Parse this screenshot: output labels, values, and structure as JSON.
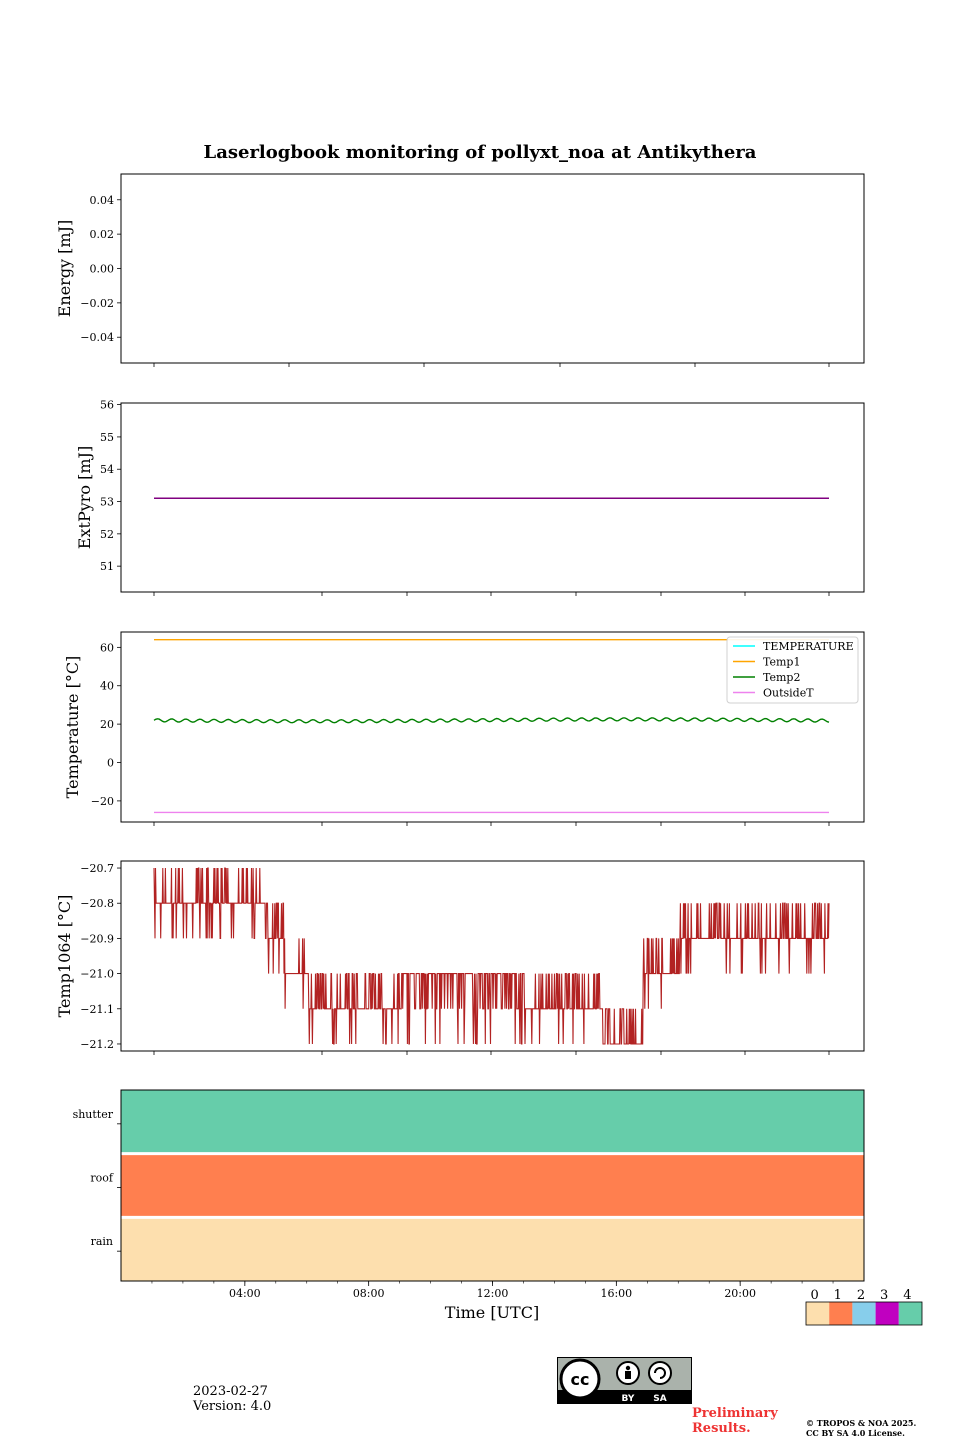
{
  "title": "Laserlogbook monitoring of pollyxt_noa at Antikythera",
  "footer": {
    "date": "2023-02-27",
    "version": "Version: 4.0",
    "preliminary_line1": "Preliminary",
    "preliminary_line2": "Results.",
    "copyright_line1": "© TROPOS & NOA 2025.",
    "copyright_line2": "CC BY SA 4.0 License.",
    "badge_by": "BY",
    "badge_sa": "SA"
  },
  "colors": {
    "energy": "#800080",
    "extpyro": "#800080",
    "temperature": "#00ffff",
    "temp1": "#ffa500",
    "temp2": "#008000",
    "outsidet": "#ee82ee",
    "temp1064": "#b22222",
    "status_0": "#fddfae",
    "status_1": "#ff7f4f",
    "status_2": "#87ceeb",
    "status_3": "#c000c0",
    "status_4": "#66cdaa",
    "preliminary": "#ee3333"
  },
  "chart_data": [
    {
      "type": "line",
      "ylabel": "Energy [mJ]",
      "ylim": [
        -0.055,
        0.055
      ],
      "yticks": [
        0.04,
        0.02,
        0.0,
        -0.02,
        -0.04
      ],
      "ytick_labels": [
        "0.04",
        "0.02",
        "0.00",
        "−0.02",
        "−0.04"
      ],
      "series": []
    },
    {
      "type": "line",
      "ylabel": "ExtPyro [mJ]",
      "ylim": [
        50.2,
        56.05
      ],
      "yticks": [
        51,
        52,
        53,
        54,
        55,
        56
      ],
      "ytick_labels": [
        "51",
        "52",
        "53",
        "54",
        "55",
        "56"
      ],
      "x_hours": [
        1.0,
        22.8
      ],
      "series": [
        {
          "values": [
            53.1,
            53.1
          ]
        }
      ]
    },
    {
      "type": "line",
      "ylabel": "Temperature [°C]",
      "ylim": [
        -31,
        68
      ],
      "yticks": [
        60,
        40,
        20,
        0,
        -20
      ],
      "ytick_labels": [
        "60",
        "40",
        "20",
        "0",
        "−20"
      ],
      "x_hours": [
        1.0,
        22.8
      ],
      "legend_position": "upper right",
      "series": [
        {
          "name": "TEMPERATURE",
          "values": [
            null,
            null
          ]
        },
        {
          "name": "Temp1",
          "values": [
            64,
            64
          ]
        },
        {
          "name": "Temp2",
          "values": [
            22,
            22
          ],
          "oscillation_amplitude": 0.8
        },
        {
          "name": "OutsideT",
          "values": [
            -26,
            -26
          ]
        }
      ]
    },
    {
      "type": "line",
      "ylabel": "Temp1064 [°C]",
      "ylim": [
        -21.22,
        -20.68
      ],
      "yticks": [
        -20.7,
        -20.8,
        -20.9,
        -21.0,
        -21.1,
        -21.2
      ],
      "ytick_labels": [
        "−20.7",
        "−20.8",
        "−20.9",
        "−21.0",
        "−21.1",
        "−21.2"
      ],
      "x_hours": [
        1.0,
        22.8
      ],
      "series": [
        {
          "name": "Temp1064",
          "segments": [
            {
              "from_hour": 1.0,
              "to_hour": 2.5,
              "base": -20.8,
              "high": -20.7,
              "low": -20.9
            },
            {
              "from_hour": 2.5,
              "to_hour": 4.5,
              "base": -20.8,
              "high": -20.7,
              "low": -20.9
            },
            {
              "from_hour": 4.5,
              "to_hour": 5.2,
              "base": -20.9,
              "high": -20.8,
              "low": -21.0
            },
            {
              "from_hour": 5.2,
              "to_hour": 6.0,
              "base": -21.0,
              "high": -20.9,
              "low": -21.1
            },
            {
              "from_hour": 6.0,
              "to_hour": 9.0,
              "base": -21.1,
              "high": -21.0,
              "low": -21.2
            },
            {
              "from_hour": 9.0,
              "to_hour": 13.0,
              "base": -21.0,
              "high": -21.1,
              "low": -21.2
            },
            {
              "from_hour": 13.0,
              "to_hour": 15.5,
              "base": -21.1,
              "high": -21.0,
              "low": -21.2
            },
            {
              "from_hour": 15.5,
              "to_hour": 16.8,
              "base": -21.2,
              "high": -21.1,
              "low": -21.2
            },
            {
              "from_hour": 16.8,
              "to_hour": 18.0,
              "base": -21.0,
              "high": -20.9,
              "low": -21.1
            },
            {
              "from_hour": 18.0,
              "to_hour": 21.0,
              "base": -20.9,
              "high": -20.8,
              "low": -21.0
            },
            {
              "from_hour": 21.0,
              "to_hour": 22.8,
              "base": -20.9,
              "high": -20.8,
              "low": -21.0
            }
          ]
        }
      ]
    },
    {
      "type": "heatmap",
      "xlabel": "Time [UTC]",
      "xlim_hours": [
        0,
        24
      ],
      "x_ticks_hours": [
        4,
        8,
        12,
        16,
        20
      ],
      "x_tick_labels": [
        "04:00",
        "08:00",
        "12:00",
        "16:00",
        "20:00"
      ],
      "rows": [
        {
          "label": "shutter",
          "value": 4
        },
        {
          "label": "roof",
          "value": 1
        },
        {
          "label": "rain",
          "value": 0
        }
      ],
      "colorbar": {
        "labels": [
          "0",
          "1",
          "2",
          "3",
          "4"
        ]
      }
    }
  ]
}
